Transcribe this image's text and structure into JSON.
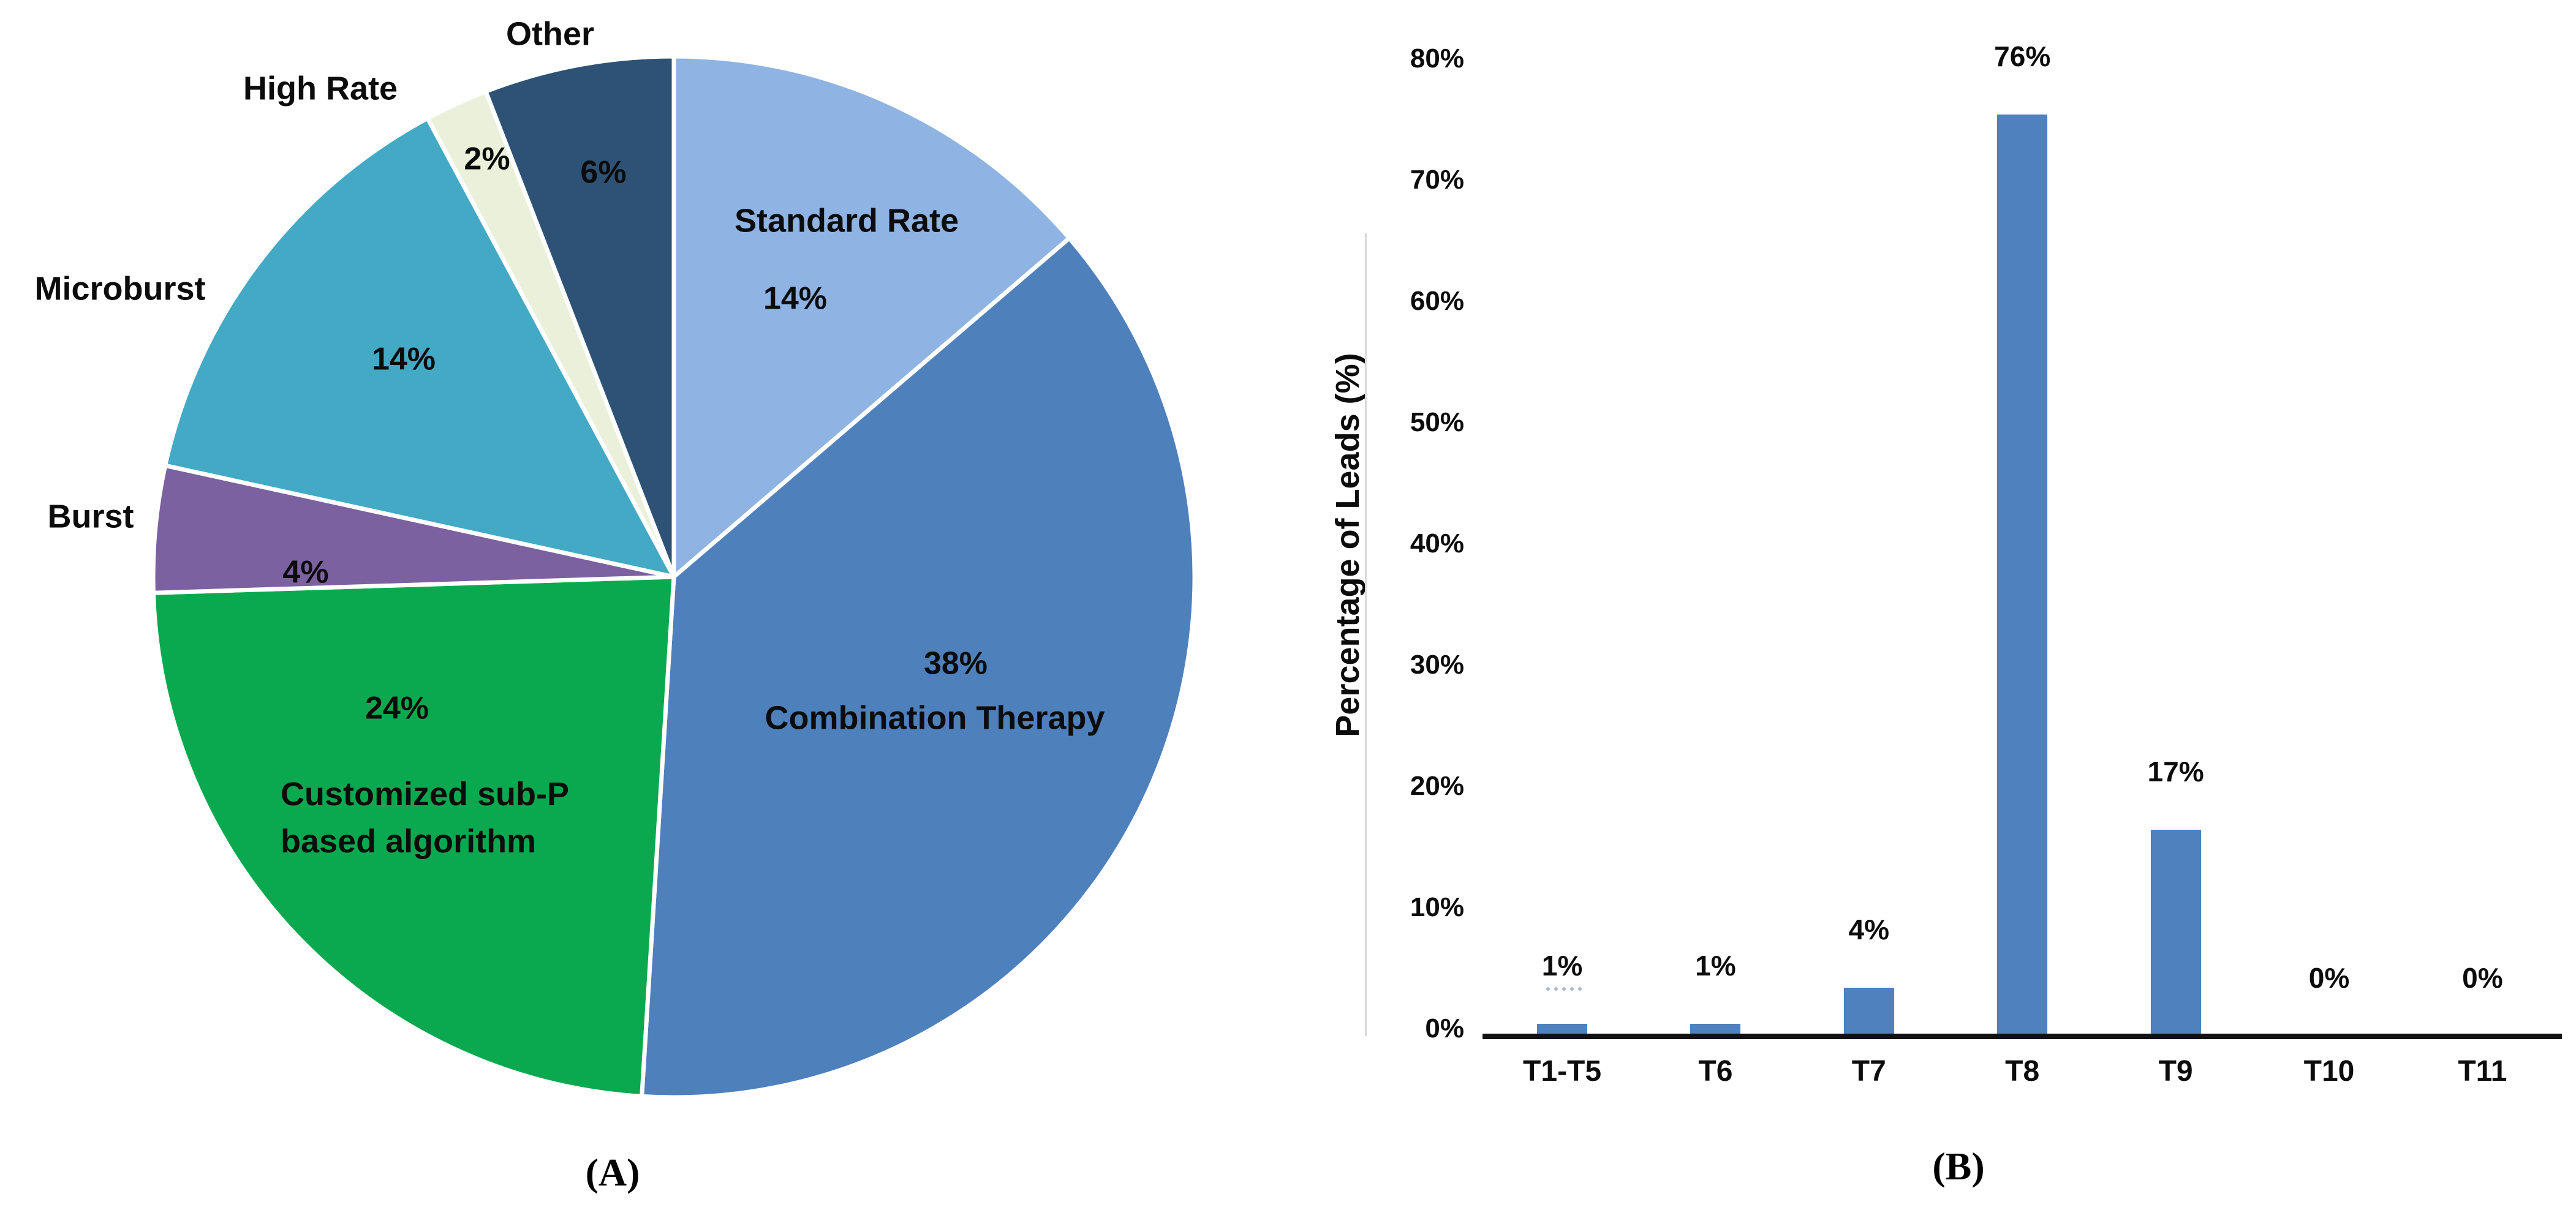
{
  "figure": {
    "panel_a_tag": "(A)",
    "panel_b_tag": "(B)"
  },
  "chart_data": [
    {
      "type": "pie",
      "title": "",
      "start_angle_deg": 0,
      "direction": "clockwise",
      "slices": [
        {
          "label": "Standard Rate",
          "value": 14,
          "display": "14%",
          "color": "#8fb3e2"
        },
        {
          "label": "Combination Therapy",
          "value": 38,
          "display": "38%",
          "color": "#4e80bc"
        },
        {
          "label": "Customized sub-P based algorithm",
          "label_line1": "Customized sub-P",
          "label_line2": "based algorithm",
          "value": 24,
          "display": "24%",
          "color": "#0ba94f"
        },
        {
          "label": "Burst",
          "value": 4,
          "display": "4%",
          "color": "#7c61a1"
        },
        {
          "label": "Microburst",
          "value": 14,
          "display": "14%",
          "color": "#43a9c5"
        },
        {
          "label": "High Rate",
          "value": 2,
          "display": "2%",
          "color": "#ebf0da"
        },
        {
          "label": "Other",
          "value": 6,
          "display": "6%",
          "color": "#2d5275"
        }
      ]
    },
    {
      "type": "bar",
      "ylabel": "Percentage of Leads (%)",
      "categories": [
        "T1-T5",
        "T6",
        "T7",
        "T8",
        "T9",
        "T10",
        "T11"
      ],
      "values": [
        1,
        1,
        4,
        76,
        17,
        0,
        0
      ],
      "value_labels": [
        "1%",
        "1%",
        "4%",
        "76%",
        "17%",
        "0%",
        "0%"
      ],
      "ytick_labels": [
        "0%",
        "10%",
        "20%",
        "30%",
        "40%",
        "50%",
        "60%",
        "70%",
        "80%"
      ],
      "ylim": [
        0,
        80
      ],
      "grid": false,
      "legend": "none",
      "bar_color": "#4e81bd"
    }
  ]
}
